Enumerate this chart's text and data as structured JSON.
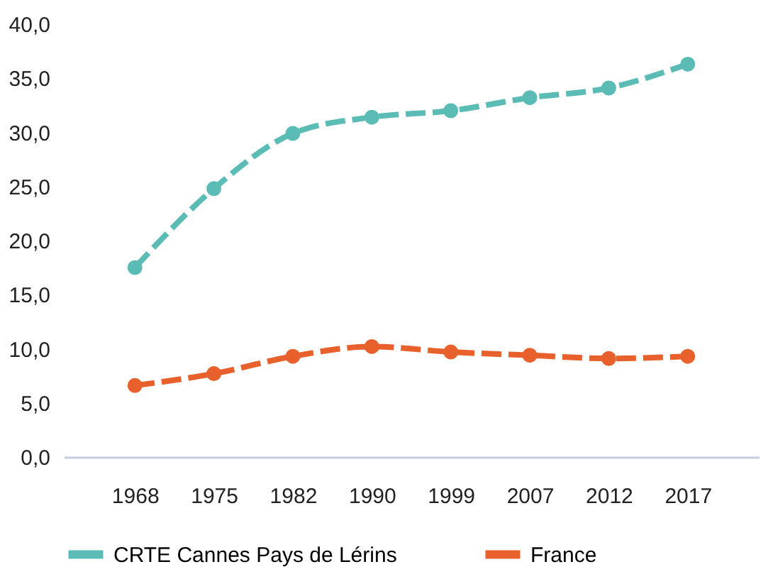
{
  "chart_data": {
    "type": "line",
    "categories": [
      "1968",
      "1975",
      "1982",
      "1990",
      "1999",
      "2007",
      "2012",
      "2017"
    ],
    "series": [
      {
        "name": "CRTE Cannes Pays de Lérins",
        "color": "#5bbcb6",
        "values": [
          17.5,
          24.8,
          29.9,
          31.4,
          32.0,
          33.2,
          34.1,
          36.3
        ]
      },
      {
        "name": "France",
        "color": "#e8612c",
        "values": [
          6.6,
          7.7,
          9.3,
          10.2,
          9.7,
          9.4,
          9.1,
          9.3
        ]
      }
    ],
    "ylim": [
      0,
      40
    ],
    "yticks": [
      {
        "value": 0,
        "label": "0,0"
      },
      {
        "value": 5,
        "label": "5,0"
      },
      {
        "value": 10,
        "label": "10,0"
      },
      {
        "value": 15,
        "label": "15,0"
      },
      {
        "value": 20,
        "label": "20,0"
      },
      {
        "value": 25,
        "label": "25,0"
      },
      {
        "value": 30,
        "label": "30,0"
      },
      {
        "value": 35,
        "label": "35,0"
      },
      {
        "value": 40,
        "label": "40,0"
      }
    ],
    "grid": false,
    "legend": "bottom",
    "marker": "circle",
    "line_style": "dashed"
  }
}
